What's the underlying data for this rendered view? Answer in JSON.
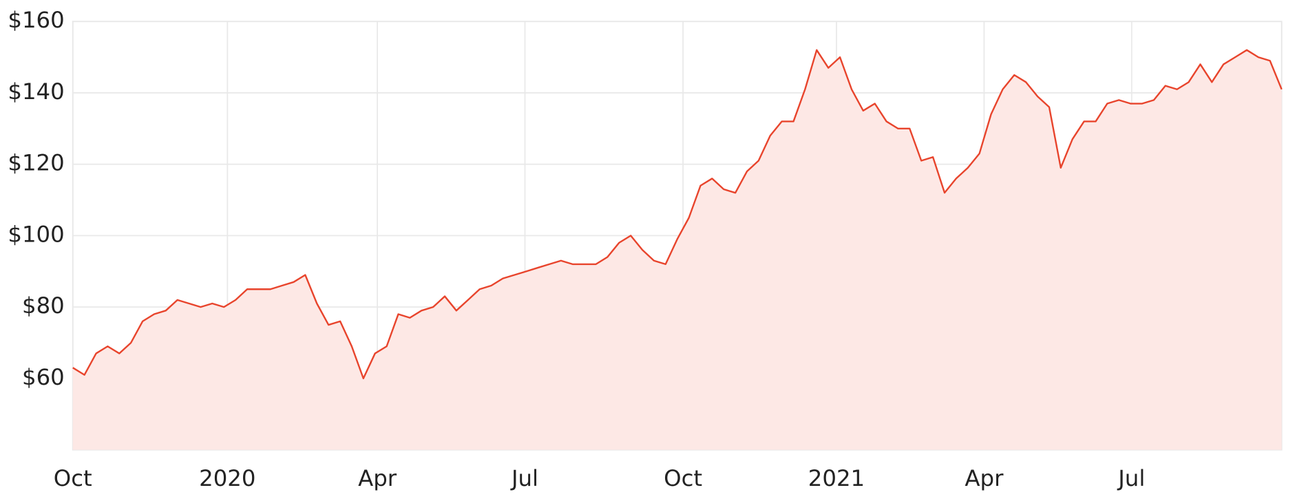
{
  "chart_data": {
    "type": "area",
    "values": [
      63,
      61,
      67,
      69,
      67,
      70,
      76,
      78,
      79,
      82,
      81,
      80,
      81,
      80,
      82,
      85,
      85,
      85,
      86,
      87,
      89,
      81,
      75,
      76,
      69,
      60,
      67,
      69,
      78,
      77,
      79,
      80,
      83,
      79,
      82,
      85,
      86,
      88,
      89,
      90,
      91,
      92,
      93,
      92,
      92,
      92,
      94,
      98,
      100,
      96,
      93,
      92,
      99,
      105,
      114,
      116,
      113,
      112,
      118,
      121,
      128,
      132,
      132,
      141,
      152,
      147,
      150,
      141,
      135,
      137,
      132,
      130,
      130,
      121,
      122,
      112,
      116,
      119,
      123,
      134,
      141,
      145,
      143,
      139,
      136,
      119,
      127,
      132,
      132,
      137,
      138,
      137,
      137,
      138,
      142,
      141,
      143,
      148,
      143,
      148,
      150,
      152,
      150,
      149,
      141
    ],
    "color": "#e8442c",
    "fill_color": "#fde8e5",
    "xlim": [
      0,
      104
    ],
    "xticks": [
      {
        "value": 0,
        "label": "Oct"
      },
      {
        "value": 13.3,
        "label": "2020"
      },
      {
        "value": 26.2,
        "label": "Apr"
      },
      {
        "value": 38.9,
        "label": "Jul"
      },
      {
        "value": 52.5,
        "label": "Oct"
      },
      {
        "value": 65.7,
        "label": "2021"
      },
      {
        "value": 78.4,
        "label": "Apr"
      },
      {
        "value": 91.1,
        "label": "Jul"
      }
    ],
    "ylim": [
      40,
      160
    ],
    "yticks": [
      {
        "value": 60,
        "label": "$60"
      },
      {
        "value": 80,
        "label": "$80"
      },
      {
        "value": 100,
        "label": "$100"
      },
      {
        "value": 120,
        "label": "$120"
      },
      {
        "value": 140,
        "label": "$140"
      },
      {
        "value": 160,
        "label": "$160"
      }
    ],
    "grid": true
  }
}
